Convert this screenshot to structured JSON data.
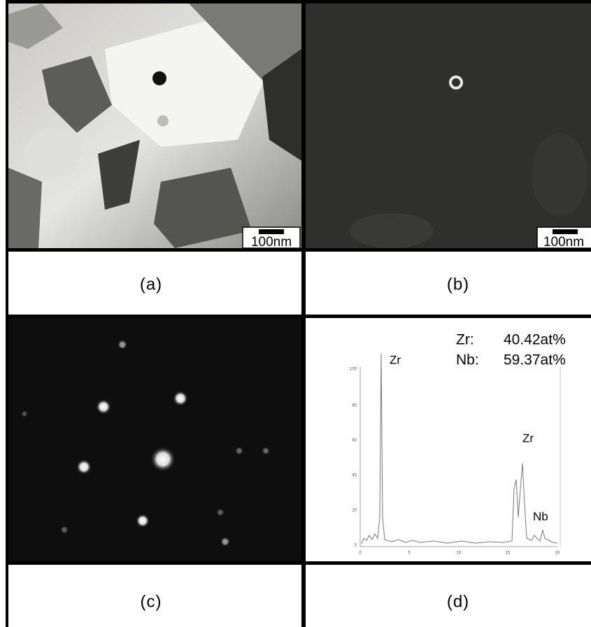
{
  "panels": [
    {
      "label": "(a)",
      "scale_bar": "100nm"
    },
    {
      "label": "(b)",
      "scale_bar": "100nm"
    },
    {
      "label": "(c)"
    },
    {
      "label": "(d)",
      "composition": [
        {
          "element": "Zr:",
          "value": "40.42at%"
        },
        {
          "element": "Nb:",
          "value": "59.37at%"
        }
      ],
      "peak_labels": [
        "Zr",
        "Zr",
        "Nb"
      ],
      "spectrum_axis": {
        "yticks": [
          "100",
          "80",
          "60",
          "40",
          "20",
          "0"
        ],
        "xticks": [
          "0",
          "5",
          "10",
          "15",
          "20"
        ]
      }
    }
  ]
}
